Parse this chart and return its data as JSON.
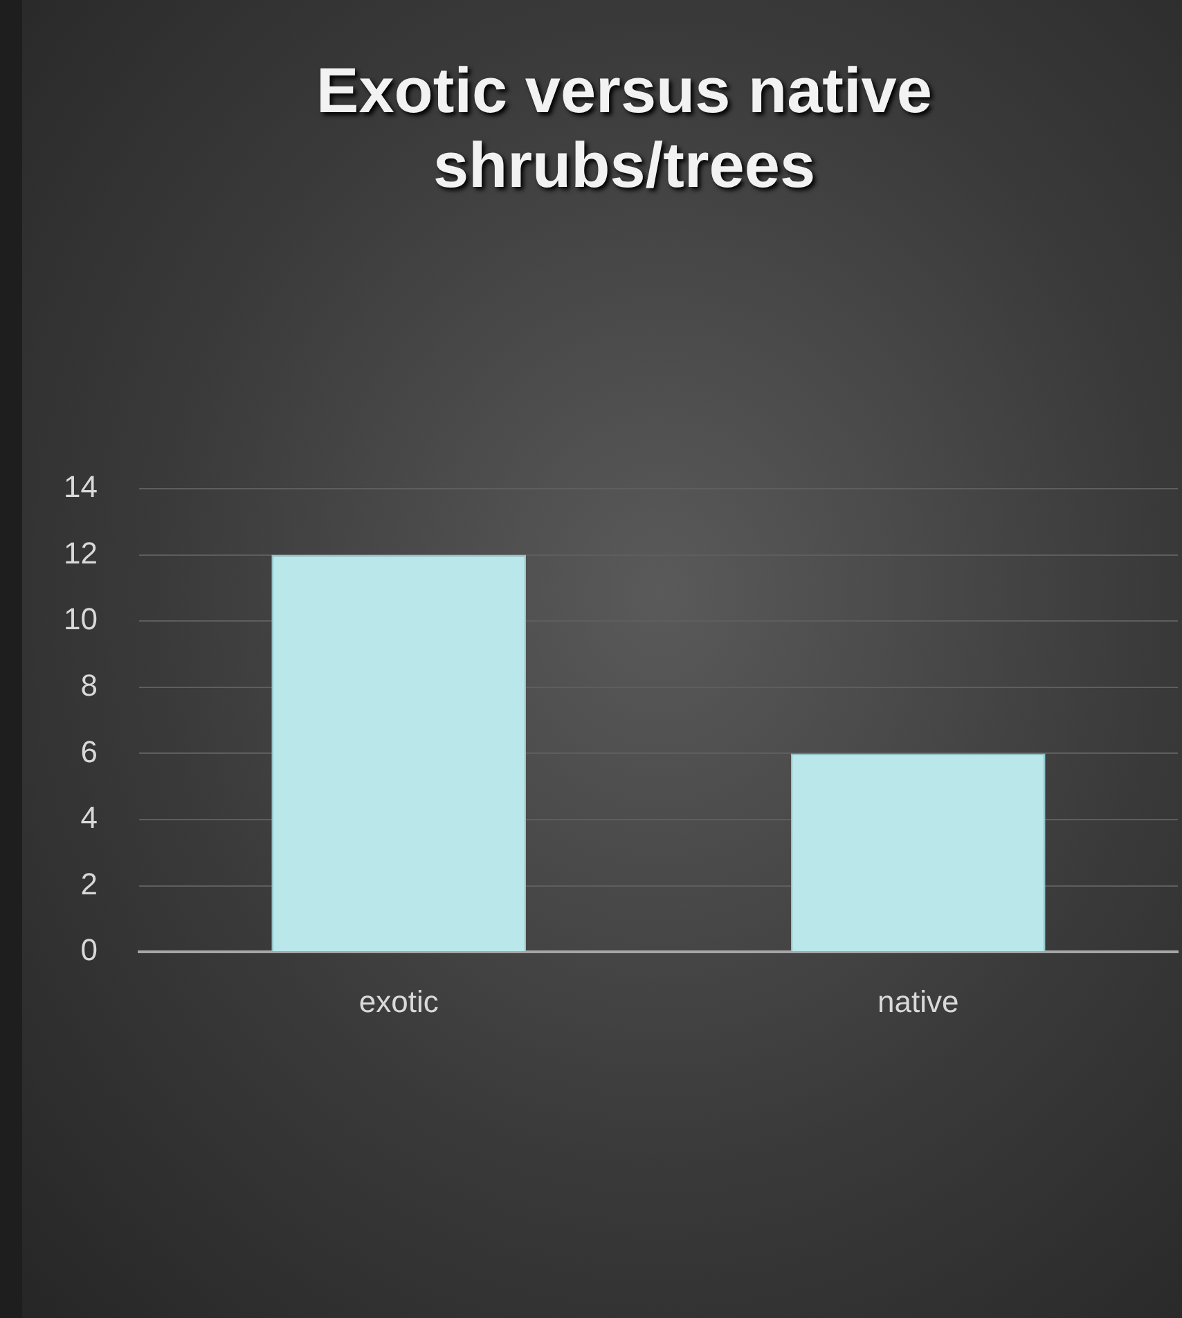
{
  "chart_data": {
    "type": "bar",
    "title": "Exotic versus native shrubs/trees",
    "categories": [
      "exotic",
      "native"
    ],
    "values": [
      12,
      6
    ],
    "color": "#b9e7ea",
    "ylim": [
      0,
      14
    ],
    "yticks": [
      0,
      2,
      4,
      6,
      8,
      10,
      12,
      14
    ],
    "grid": "y",
    "legend": false
  }
}
